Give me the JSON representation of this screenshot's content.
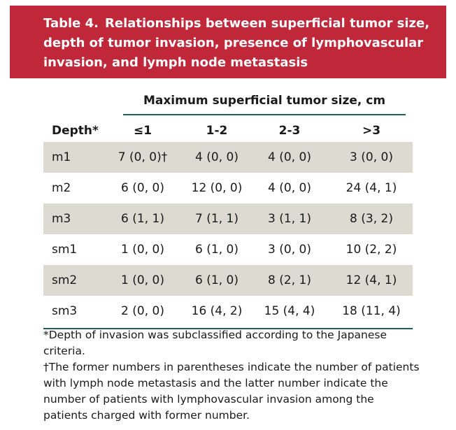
{
  "table": {
    "number": "Table 4.",
    "title_lines": [
      "Relationships between superficial tumor size,",
      "depth of tumor invasion, presence of lymphovascular",
      "invasion, and lymph node metastasis"
    ],
    "spanner": "Maximum superficial tumor size, cm",
    "columns": [
      "Depth*",
      "≤1",
      "1-2",
      "2-3",
      ">3"
    ],
    "rows": [
      {
        "depth": "m1",
        "cells": [
          "7 (0, 0)†",
          "4 (0, 0)",
          "4 (0, 0)",
          "3 (0, 0)"
        ]
      },
      {
        "depth": "m2",
        "cells": [
          "6 (0, 0)",
          "12 (0, 0)",
          "4 (0, 0)",
          "24 (4, 1)"
        ]
      },
      {
        "depth": "m3",
        "cells": [
          "6 (1, 1)",
          "7 (1, 1)",
          "3 (1, 1)",
          "8 (3, 2)"
        ]
      },
      {
        "depth": "sm1",
        "cells": [
          "1 (0, 0)",
          "6 (1, 0)",
          "3 (0, 0)",
          "10 (2, 2)"
        ]
      },
      {
        "depth": "sm2",
        "cells": [
          "1 (0, 0)",
          "6 (1, 0)",
          "8 (2, 1)",
          "12 (4, 1)"
        ]
      },
      {
        "depth": "sm3",
        "cells": [
          "2 (0, 0)",
          "16 (4, 2)",
          "15 (4, 4)",
          "18 (11, 4)"
        ]
      }
    ],
    "footnotes": [
      "*Depth of invasion was subclassified according to the Japanese criteria.",
      "†The former numbers in parentheses indicate the number of patients with lymph node metastasis and the latter number indicate the number of patients with lymphovascular invasion among the patients charged with former number."
    ]
  },
  "colors": {
    "title_band": "#c0283a",
    "row_shade": "#dddbd1",
    "rule": "#1e5f5a"
  }
}
